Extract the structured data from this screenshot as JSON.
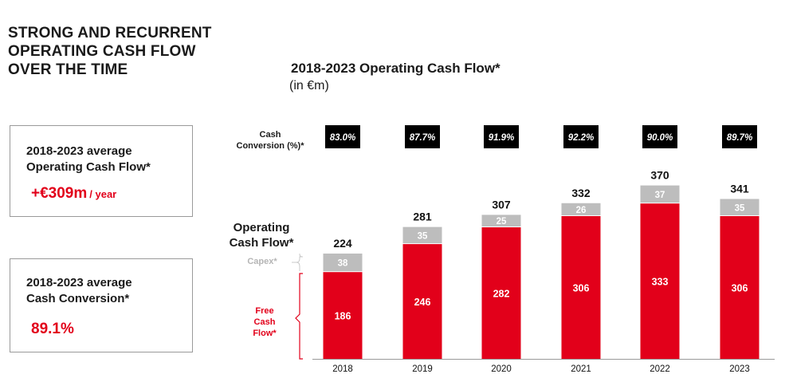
{
  "headline": "STRONG AND RECURRENT OPERATING CASH FLOW OVER THE TIME",
  "kpis": [
    {
      "label_line1": "2018-2023 average",
      "label_line2": "Operating Cash Flow*",
      "value": "+€309m",
      "unit": "/ year"
    },
    {
      "label_line1": "2018-2023 average",
      "label_line2": "Cash Conversion*",
      "value": "89.1%",
      "unit": ""
    }
  ],
  "labels": {
    "cash_conversion_line1": "Cash",
    "cash_conversion_line2": "Conversion (%)*",
    "ocf_line1": "Operating",
    "ocf_line2": "Cash Flow*",
    "capex": "Capex*",
    "fcf_line1": "Free",
    "fcf_line2": "Cash",
    "fcf_line3": "Flow*"
  },
  "colors": {
    "free_cash_flow": "#e2001a",
    "capex": "#bdbdbd",
    "conversion_badge": "#000000",
    "accent_text": "#e2001a"
  },
  "chart_data": {
    "type": "bar",
    "stacked": true,
    "title": "2018-2023 Operating Cash Flow*",
    "subtitle": "(in €m)",
    "categories": [
      "2018",
      "2019",
      "2020",
      "2021",
      "2022",
      "2023"
    ],
    "series": [
      {
        "name": "Free Cash Flow*",
        "values": [
          186,
          246,
          282,
          306,
          333,
          306
        ]
      },
      {
        "name": "Capex*",
        "values": [
          38,
          35,
          25,
          26,
          37,
          35
        ]
      }
    ],
    "totals": [
      224,
      281,
      307,
      332,
      370,
      341
    ],
    "total_labels": [
      "224",
      "281",
      "307",
      "332",
      "370",
      "341"
    ],
    "cash_conversion": [
      "83.0%",
      "87.7%",
      "91.9%",
      "92.2%",
      "90.0%",
      "89.7%"
    ],
    "grid": false
  }
}
